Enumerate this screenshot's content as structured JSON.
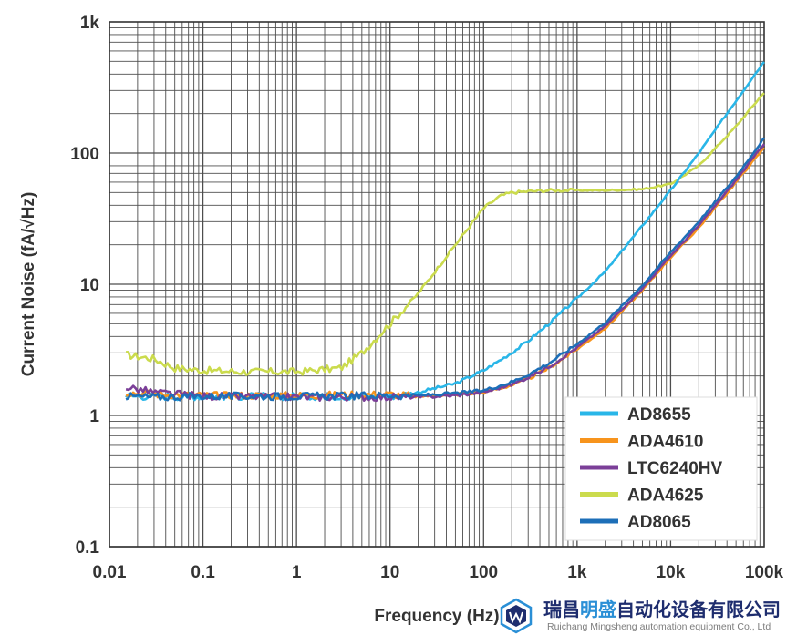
{
  "chart_data": {
    "type": "line",
    "title": "",
    "xlabel": "Frequency (Hz)",
    "ylabel": "Current Noise (fA/√Hz)",
    "x_scale": "log",
    "y_scale": "log",
    "xlim": [
      0.01,
      100000
    ],
    "ylim": [
      0.1,
      1000
    ],
    "grid": true,
    "legend_position": "bottom-right",
    "x_ticks": [
      {
        "value": 0.01,
        "label": "0.01"
      },
      {
        "value": 0.1,
        "label": "0.1"
      },
      {
        "value": 1,
        "label": "1"
      },
      {
        "value": 10,
        "label": "10"
      },
      {
        "value": 100,
        "label": "100"
      },
      {
        "value": 1000,
        "label": "1k"
      },
      {
        "value": 10000,
        "label": "10k"
      },
      {
        "value": 100000,
        "label": "100k"
      }
    ],
    "y_ticks": [
      {
        "value": 0.1,
        "label": "0.1"
      },
      {
        "value": 1,
        "label": "1"
      },
      {
        "value": 10,
        "label": "10"
      },
      {
        "value": 100,
        "label": "100"
      },
      {
        "value": 1000,
        "label": "1k"
      }
    ],
    "series": [
      {
        "name": "AD8655",
        "color": "#29b6e8",
        "x": [
          0.015,
          0.03,
          0.1,
          1,
          10,
          20,
          50,
          100,
          200,
          300,
          500,
          1000,
          2000,
          5000,
          10000,
          20000,
          50000,
          100000
        ],
        "y": [
          1.4,
          1.4,
          1.4,
          1.4,
          1.4,
          1.5,
          1.75,
          2.2,
          3.0,
          3.7,
          5.0,
          7.8,
          12.5,
          28,
          52,
          100,
          250,
          500
        ]
      },
      {
        "name": "ADA4610",
        "color": "#f7941d",
        "x": [
          0.015,
          0.03,
          0.1,
          1,
          10,
          20,
          50,
          100,
          200,
          300,
          500,
          1000,
          2000,
          5000,
          10000,
          20000,
          50000,
          100000
        ],
        "y": [
          1.5,
          1.45,
          1.42,
          1.42,
          1.45,
          1.4,
          1.45,
          1.5,
          1.7,
          1.9,
          2.3,
          3.2,
          4.6,
          9.0,
          16,
          27,
          60,
          110
        ]
      },
      {
        "name": "LTC6240HV",
        "color": "#7b3f98",
        "x": [
          0.015,
          0.03,
          0.1,
          1,
          10,
          20,
          50,
          100,
          200,
          300,
          500,
          1000,
          2000,
          5000,
          10000,
          20000,
          50000,
          100000
        ],
        "y": [
          1.65,
          1.5,
          1.4,
          1.38,
          1.38,
          1.38,
          1.42,
          1.5,
          1.72,
          1.95,
          2.35,
          3.3,
          4.8,
          9.3,
          16.5,
          28,
          62,
          118
        ]
      },
      {
        "name": "ADA4625",
        "color": "#cbdb4d",
        "x": [
          0.015,
          0.03,
          0.05,
          0.1,
          0.3,
          1,
          3,
          5,
          10,
          20,
          50,
          100,
          150,
          200,
          300,
          500,
          1000,
          2000,
          5000,
          10000,
          20000,
          50000,
          100000
        ],
        "y": [
          2.9,
          2.7,
          2.3,
          2.2,
          2.15,
          2.15,
          2.3,
          3.0,
          5.0,
          8.5,
          20,
          38,
          47,
          50,
          51,
          52,
          52,
          52,
          53,
          58,
          80,
          160,
          290
        ]
      },
      {
        "name": "AD8065",
        "color": "#1d6fb8",
        "x": [
          0.015,
          0.03,
          0.1,
          1,
          10,
          20,
          50,
          100,
          200,
          300,
          500,
          1000,
          2000,
          5000,
          10000,
          20000,
          50000,
          100000
        ],
        "y": [
          1.4,
          1.38,
          1.4,
          1.4,
          1.42,
          1.42,
          1.47,
          1.55,
          1.8,
          2.05,
          2.5,
          3.5,
          5.1,
          9.8,
          17.5,
          30,
          66,
          130
        ]
      }
    ]
  },
  "watermark": {
    "company_cn_part1": "瑞昌",
    "company_cn_part2": "明盛",
    "company_cn_part3": "自动化设备有限公司",
    "company_en": "Ruichang Mingsheng automation equipment Co., Ltd",
    "colors": {
      "primary": "#1e2d6e",
      "accent": "#2a8fd6"
    }
  }
}
